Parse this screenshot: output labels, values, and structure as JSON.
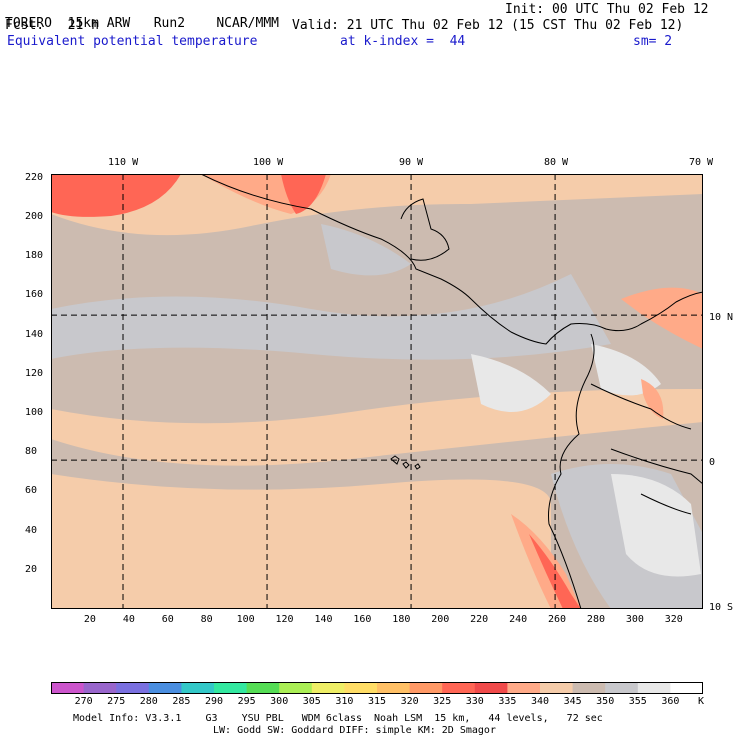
{
  "header": {
    "model": "TORERO",
    "resolution": "15km ARW",
    "run": "Run2",
    "center": "NCAR/MMM",
    "init": "Init: 00 UTC Thu 02 Feb 12",
    "fcst_label": "Fcst.",
    "fcst_hours": "21 h",
    "valid": "Valid: 21 UTC Thu 02 Feb 12 (15 CST Thu 02 Feb 12)",
    "field": "Equivalent potential temperature",
    "level": "at k-index =",
    "k_index": "44",
    "smoothing": "sm= 2"
  },
  "map": {
    "lon_labels": [
      "110 W",
      "100 W",
      "90 W",
      "80 W",
      "70 W"
    ],
    "lat_labels": [
      "10 N",
      "0",
      "10 S"
    ],
    "y_ticks": [
      "220",
      "200",
      "180",
      "160",
      "140",
      "120",
      "100",
      "80",
      "60",
      "40",
      "20"
    ],
    "x_ticks": [
      "20",
      "40",
      "60",
      "80",
      "100",
      "120",
      "140",
      "160",
      "180",
      "200",
      "220",
      "240",
      "260",
      "280",
      "300",
      "320"
    ],
    "grid_i_max": 335,
    "grid_j_max": 222,
    "meridians_i": [
      37,
      111,
      185,
      259
    ],
    "parallels_j": [
      150,
      76
    ]
  },
  "colorbar": {
    "labels": [
      "270",
      "275",
      "280",
      "285",
      "290",
      "295",
      "300",
      "305",
      "310",
      "315",
      "320",
      "325",
      "330",
      "335",
      "340",
      "345",
      "350",
      "355",
      "360"
    ],
    "unit": "K",
    "colors": [
      "#cc55cc",
      "#9966cc",
      "#7a70e0",
      "#4a8ee0",
      "#33c8c8",
      "#33e8a0",
      "#55dd55",
      "#aaee55",
      "#eeee66",
      "#ffdd66",
      "#ffc066",
      "#ff9966",
      "#ff6655",
      "#f04a4a",
      "#ffaa88",
      "#f5ccaa",
      "#ccbbb0",
      "#c8c8cc",
      "#e8e8e8",
      "#ffffff"
    ]
  },
  "footer": {
    "line1": "Model Info: V3.3.1    G3    YSU PBL   WDM 6class  Noah LSM  15 km,   44 levels,   72 sec",
    "line2": "LW: Godd SW: Goddard DIFF: simple KM: 2D Smagor"
  }
}
